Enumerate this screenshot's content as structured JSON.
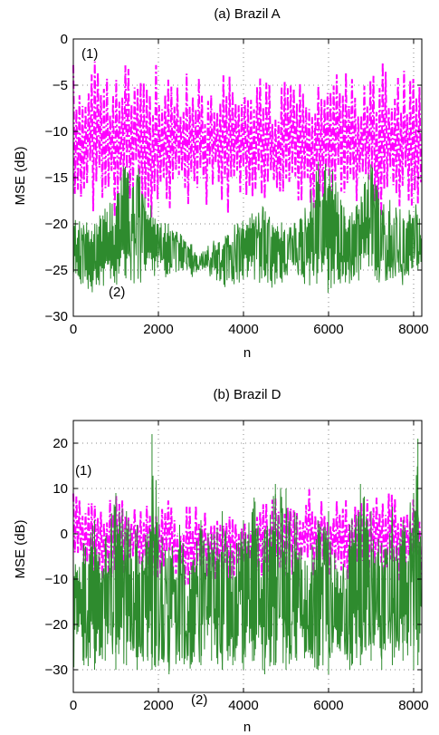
{
  "chart_data": [
    {
      "type": "line",
      "title": "(a) Brazil A",
      "xlabel": "n",
      "ylabel": "MSE (dB)",
      "xlim": [
        0,
        8192
      ],
      "ylim": [
        -30,
        0
      ],
      "xticks": [
        "0",
        "2000",
        "4000",
        "6000",
        "8000"
      ],
      "yticks": [
        "0",
        "−5",
        "−10",
        "−15",
        "−20",
        "−25",
        "−30"
      ],
      "grid": true,
      "annotations": [
        "(1)",
        "(2)"
      ],
      "series": [
        {
          "color": "#ff00ff",
          "style": "dash-dot",
          "x": [
            0,
            250,
            500,
            750,
            1000,
            1250,
            1500,
            1750,
            2000,
            2250,
            2500,
            2750,
            3000,
            3250,
            3500,
            3750,
            4000,
            4250,
            4500,
            4750,
            5000,
            5250,
            5500,
            5750,
            6000,
            6250,
            6500,
            6750,
            7000,
            7250,
            7500,
            7750,
            8000,
            8192
          ],
          "upper": [
            -1,
            -3,
            -2,
            -4,
            -3,
            -2,
            -5,
            -3,
            -2,
            -4,
            -3,
            -2,
            -4,
            -5,
            -3,
            -4,
            -5,
            -4,
            -3,
            -5,
            -4,
            -3,
            -5,
            -4,
            -3,
            -4,
            -3,
            -4,
            -3,
            -2,
            -4,
            -3,
            -2,
            -3
          ],
          "lower": [
            -20,
            -17,
            -19,
            -18,
            -20,
            -19,
            -17,
            -20,
            -18,
            -19,
            -20,
            -18,
            -19,
            -17,
            -20,
            -18,
            -17,
            -19,
            -20,
            -18,
            -17,
            -19,
            -20,
            -18,
            -19,
            -18,
            -20,
            -19,
            -18,
            -20,
            -17,
            -19,
            -18,
            -20
          ]
        },
        {
          "color": "#2e8b2e",
          "style": "solid",
          "x": [
            0,
            250,
            500,
            750,
            1000,
            1250,
            1500,
            1750,
            2000,
            2250,
            2500,
            2750,
            3000,
            3250,
            3500,
            3750,
            4000,
            4250,
            4500,
            4750,
            5000,
            5250,
            5500,
            5750,
            6000,
            6250,
            6500,
            6750,
            7000,
            7250,
            7500,
            7750,
            8000,
            8192
          ],
          "upper": [
            -19,
            -20,
            -19,
            -18,
            -17,
            -11,
            -13,
            -17,
            -19,
            -20,
            -21,
            -22,
            -23,
            -22,
            -21,
            -20,
            -19,
            -18,
            -18,
            -19,
            -20,
            -19,
            -18,
            -13,
            -12,
            -17,
            -18,
            -17,
            -13,
            -18,
            -17,
            -18,
            -17,
            -20
          ],
          "lower": [
            -28,
            -27,
            -28,
            -27,
            -27,
            -26,
            -27,
            -26,
            -26,
            -26,
            -25,
            -26,
            -25,
            -26,
            -27,
            -27,
            -26,
            -26,
            -27,
            -27,
            -26,
            -26,
            -27,
            -27,
            -28,
            -27,
            -27,
            -26,
            -26,
            -27,
            -26,
            -27,
            -25,
            -25
          ]
        }
      ]
    },
    {
      "type": "line",
      "title": "(b) Brazil D",
      "xlabel": "n",
      "ylabel": "MSE (dB)",
      "xlim": [
        0,
        8192
      ],
      "ylim": [
        -35,
        25
      ],
      "xticks": [
        "0",
        "2000",
        "4000",
        "6000",
        "8000"
      ],
      "yticks": [
        "20",
        "10",
        "0",
        "−10",
        "−20",
        "−30"
      ],
      "grid": true,
      "annotations": [
        "(1)",
        "(2)"
      ],
      "series": [
        {
          "color": "#ff00ff",
          "style": "dash-dot",
          "x": [
            0,
            250,
            500,
            750,
            1000,
            1250,
            1500,
            1750,
            2000,
            2250,
            2500,
            2750,
            3000,
            3250,
            3500,
            3750,
            4000,
            4250,
            4500,
            4750,
            5000,
            5250,
            5500,
            5750,
            6000,
            6250,
            6500,
            6750,
            7000,
            7250,
            7500,
            7750,
            8000,
            8192
          ],
          "upper": [
            11,
            9,
            10,
            8,
            10,
            9,
            7,
            9,
            6,
            8,
            5,
            7,
            6,
            5,
            4,
            6,
            3,
            5,
            7,
            8,
            9,
            7,
            10,
            9,
            8,
            10,
            9,
            10,
            8,
            10,
            9,
            8,
            10,
            9
          ],
          "lower": [
            -10,
            -9,
            -11,
            -10,
            -12,
            -8,
            -11,
            -10,
            -12,
            -9,
            -13,
            -11,
            -8,
            -14,
            -10,
            -12,
            -9,
            -11,
            -13,
            -10,
            -12,
            -14,
            -9,
            -11,
            -10,
            -12,
            -11,
            -13,
            -10,
            -12,
            -9,
            -11,
            -10,
            -12
          ]
        },
        {
          "color": "#2e8b2e",
          "style": "solid",
          "x": [
            0,
            250,
            500,
            750,
            1000,
            1250,
            1500,
            1750,
            1850,
            2000,
            2250,
            2500,
            2750,
            3000,
            3250,
            3500,
            3750,
            4000,
            4250,
            4500,
            4750,
            5000,
            5250,
            5500,
            5750,
            6000,
            6250,
            6500,
            6750,
            7000,
            7250,
            7500,
            7750,
            8000,
            8100,
            8192
          ],
          "upper": [
            -5,
            -2,
            3,
            -1,
            9,
            5,
            2,
            0,
            22,
            6,
            -3,
            2,
            -8,
            3,
            0,
            5,
            -4,
            3,
            8,
            1,
            11,
            10,
            4,
            -6,
            3,
            5,
            -10,
            2,
            11,
            5,
            -2,
            6,
            3,
            9,
            21,
            -8
          ],
          "lower": [
            -30,
            -29,
            -30,
            -28,
            -30,
            -29,
            -30,
            -28,
            -30,
            -29,
            -31,
            -28,
            -30,
            -29,
            -28,
            -30,
            -29,
            -30,
            -28,
            -31,
            -29,
            -30,
            -28,
            -29,
            -30,
            -31,
            -28,
            -30,
            -29,
            -28,
            -30,
            -29,
            -28,
            -30,
            -29,
            -28
          ]
        }
      ]
    }
  ]
}
